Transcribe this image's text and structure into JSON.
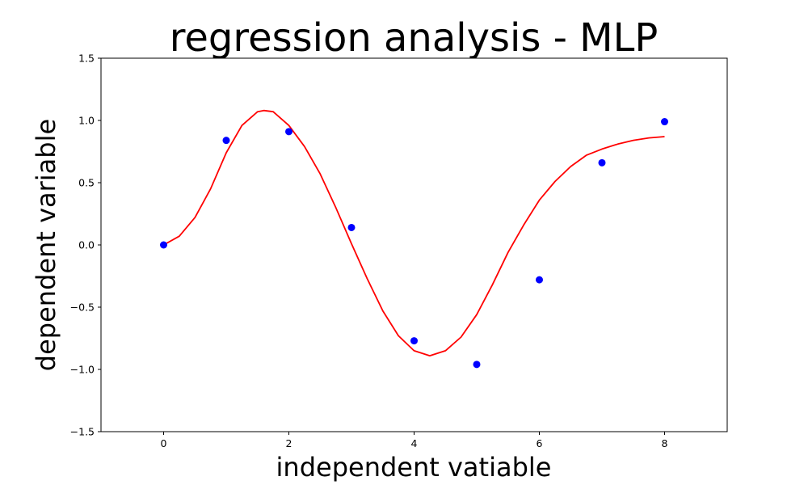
{
  "chart_data": {
    "type": "scatter",
    "title": "regression analysis - MLP",
    "xlabel": "independent vatiable",
    "ylabel": "dependent variable",
    "xlim": [
      -1,
      9
    ],
    "ylim": [
      -1.5,
      1.5
    ],
    "x_ticks": [
      0,
      2,
      4,
      6,
      8
    ],
    "x_tick_labels": [
      "0",
      "2",
      "4",
      "6",
      "8"
    ],
    "y_ticks": [
      -1.5,
      -1.0,
      -0.5,
      0.0,
      0.5,
      1.0,
      1.5
    ],
    "y_tick_labels": [
      "−1.5",
      "−1.0",
      "−0.5",
      "0.0",
      "0.5",
      "1.0",
      "1.5"
    ],
    "grid": false,
    "legend": "none",
    "series": [
      {
        "kind": "points",
        "color": "#0000ff",
        "points": [
          {
            "x": 0,
            "y": 0.0
          },
          {
            "x": 1,
            "y": 0.84
          },
          {
            "x": 2,
            "y": 0.91
          },
          {
            "x": 3,
            "y": 0.14
          },
          {
            "x": 4,
            "y": -0.77
          },
          {
            "x": 5,
            "y": -0.96
          },
          {
            "x": 6,
            "y": -0.28
          },
          {
            "x": 7,
            "y": 0.66
          },
          {
            "x": 8,
            "y": 0.99
          }
        ]
      },
      {
        "kind": "line",
        "color": "#ff0000",
        "points": [
          {
            "x": 0.0,
            "y": 0.0
          },
          {
            "x": 0.25,
            "y": 0.07
          },
          {
            "x": 0.5,
            "y": 0.22
          },
          {
            "x": 0.75,
            "y": 0.45
          },
          {
            "x": 1.0,
            "y": 0.74
          },
          {
            "x": 1.25,
            "y": 0.96
          },
          {
            "x": 1.5,
            "y": 1.07
          },
          {
            "x": 1.6,
            "y": 1.08
          },
          {
            "x": 1.75,
            "y": 1.07
          },
          {
            "x": 2.0,
            "y": 0.96
          },
          {
            "x": 2.25,
            "y": 0.79
          },
          {
            "x": 2.5,
            "y": 0.57
          },
          {
            "x": 2.75,
            "y": 0.3
          },
          {
            "x": 3.0,
            "y": 0.01
          },
          {
            "x": 3.25,
            "y": -0.27
          },
          {
            "x": 3.5,
            "y": -0.53
          },
          {
            "x": 3.75,
            "y": -0.73
          },
          {
            "x": 4.0,
            "y": -0.85
          },
          {
            "x": 4.25,
            "y": -0.89
          },
          {
            "x": 4.5,
            "y": -0.85
          },
          {
            "x": 4.75,
            "y": -0.74
          },
          {
            "x": 5.0,
            "y": -0.56
          },
          {
            "x": 5.25,
            "y": -0.32
          },
          {
            "x": 5.5,
            "y": -0.06
          },
          {
            "x": 5.75,
            "y": 0.16
          },
          {
            "x": 6.0,
            "y": 0.36
          },
          {
            "x": 6.25,
            "y": 0.51
          },
          {
            "x": 6.5,
            "y": 0.63
          },
          {
            "x": 6.75,
            "y": 0.72
          },
          {
            "x": 7.0,
            "y": 0.77
          },
          {
            "x": 7.25,
            "y": 0.81
          },
          {
            "x": 7.5,
            "y": 0.84
          },
          {
            "x": 7.75,
            "y": 0.86
          },
          {
            "x": 8.0,
            "y": 0.87
          }
        ]
      }
    ]
  }
}
